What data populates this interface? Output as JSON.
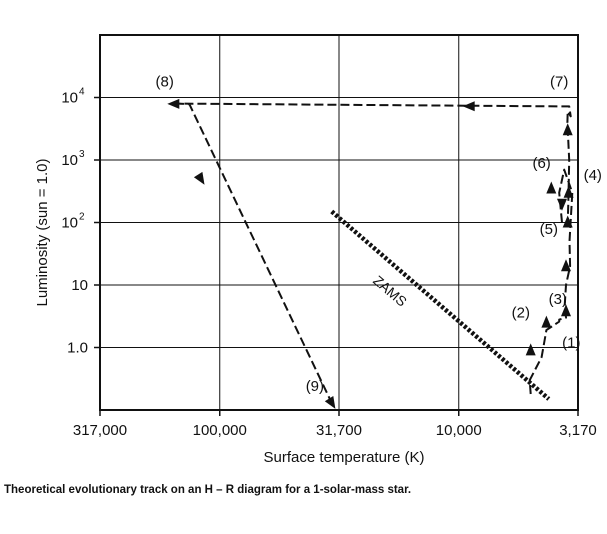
{
  "caption": "Theoretical evolutionary track on an H – R diagram for a 1-solar-mass star.",
  "chart_data": {
    "type": "line",
    "title": "",
    "xlabel": "Surface temperature (K)",
    "ylabel": "Luminosity (sun = 1.0)",
    "x_scale": "log",
    "x_reversed": true,
    "y_scale": "log",
    "xlim": [
      317000,
      3170
    ],
    "ylim": [
      0.1,
      100000
    ],
    "grid": true,
    "x_ticks": [
      {
        "value": 317000,
        "label": "317,000"
      },
      {
        "value": 100000,
        "label": "100,000"
      },
      {
        "value": 31700,
        "label": "31,700"
      },
      {
        "value": 10000,
        "label": "10,000"
      },
      {
        "value": 3170,
        "label": "3,170"
      }
    ],
    "y_ticks": [
      {
        "value": 1,
        "label": "1.0"
      },
      {
        "value": 10,
        "label": "10"
      },
      {
        "value": 100,
        "label": "10",
        "exp": "2"
      },
      {
        "value": 1000,
        "label": "10",
        "exp": "3"
      },
      {
        "value": 10000,
        "label": "10",
        "exp": "4"
      }
    ],
    "series": [
      {
        "style": "dashed",
        "x": [
          5000,
          5050,
          4500,
          4300,
          3800,
          3800,
          3560,
          3600,
          3560,
          3420,
          3440,
          3350,
          3620,
          3800,
          3700,
          3600,
          3500,
          3480,
          3450,
          3480,
          3510,
          3500,
          3400,
          3450,
          3700,
          150000,
          134000,
          34000
        ],
        "y": [
          0.18,
          0.3,
          0.7,
          1.9,
          2.6,
          2.8,
          3.0,
          5.0,
          10,
          20,
          50,
          300,
          700,
          300,
          100,
          90,
          100,
          200,
          1000,
          2000,
          4000,
          6000,
          5000,
          7200,
          7200,
          8000,
          7800,
          0.13
        ]
      }
    ],
    "zams": {
      "x": [
        34000,
        4200
      ],
      "y": [
        150,
        0.15
      ]
    },
    "zams_label": "ZAMS",
    "labels": [
      {
        "text": "(1)",
        "x": 3380,
        "y": 1.0
      },
      {
        "text": "(2)",
        "x": 5500,
        "y": 3.0
      },
      {
        "text": "(3)",
        "x": 3850,
        "y": 5.0
      },
      {
        "text": "(4)",
        "x": 2750,
        "y": 480
      },
      {
        "text": "(5)",
        "x": 4200,
        "y": 65
      },
      {
        "text": "(6)",
        "x": 4500,
        "y": 750
      },
      {
        "text": "(7)",
        "x": 3800,
        "y": 15000
      },
      {
        "text": "(8)",
        "x": 170000,
        "y": 15000
      },
      {
        "text": "(9)",
        "x": 40000,
        "y": 0.2
      }
    ],
    "arrows": [
      {
        "x": 5000,
        "y": 0.9,
        "dir": "up"
      },
      {
        "x": 4300,
        "y": 2.5,
        "dir": "up"
      },
      {
        "x": 3560,
        "y": 3.8,
        "dir": "up"
      },
      {
        "x": 3560,
        "y": 20,
        "dir": "up"
      },
      {
        "x": 3470,
        "y": 300,
        "dir": "up"
      },
      {
        "x": 3700,
        "y": 200,
        "dir": "down"
      },
      {
        "x": 3500,
        "y": 100,
        "dir": "up"
      },
      {
        "x": 4100,
        "y": 350,
        "dir": "up"
      },
      {
        "x": 3500,
        "y": 3000,
        "dir": "up"
      },
      {
        "x": 9000,
        "y": 7250,
        "dir": "left"
      },
      {
        "x": 155000,
        "y": 7900,
        "dir": "left"
      },
      {
        "x": 120000,
        "y": 500,
        "dir": "down-right"
      },
      {
        "x": 34000,
        "y": 0.13,
        "dir": "down-right"
      }
    ]
  }
}
